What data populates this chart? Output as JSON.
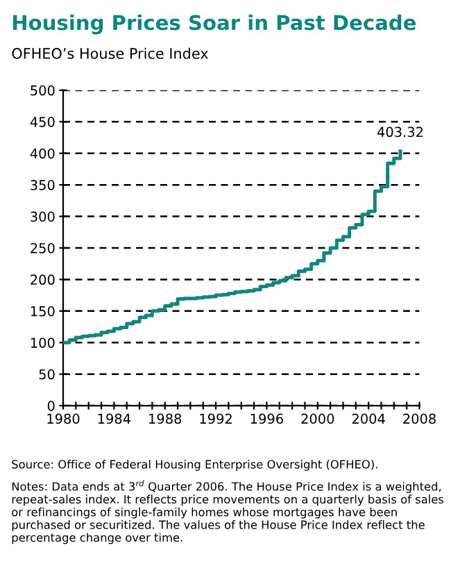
{
  "chart_data": {
    "type": "step",
    "title": "Housing Prices Soar in Past Decade",
    "subtitle": "OFHEO’s House Price Index",
    "x": [
      1980,
      1980.5,
      1981,
      1981.5,
      1982,
      1982.5,
      1983,
      1983.5,
      1984,
      1984.5,
      1985,
      1985.5,
      1986,
      1986.5,
      1987,
      1987.5,
      1988,
      1988.5,
      1989,
      1989.5,
      1990,
      1990.5,
      1991,
      1991.5,
      1992,
      1992.5,
      1993,
      1993.5,
      1994,
      1994.5,
      1995,
      1995.5,
      1996,
      1996.5,
      1997,
      1997.5,
      1998,
      1998.5,
      1999,
      1999.5,
      2000,
      2000.5,
      2001,
      2001.5,
      2002,
      2002.5,
      2003,
      2003.5,
      2004,
      2004.5,
      2005,
      2005.5,
      2006,
      2006.5
    ],
    "series": [
      {
        "color": "#13857f",
        "values": [
          100,
          104,
          108,
          110,
          111,
          112,
          116,
          118,
          122,
          124,
          130,
          133,
          140,
          143,
          150,
          152,
          158,
          161,
          169,
          170,
          170,
          171,
          172,
          173,
          175,
          176,
          178,
          180,
          181,
          182,
          184,
          189,
          191,
          195,
          198,
          203,
          206,
          213,
          216,
          225,
          230,
          242,
          250,
          262,
          268,
          282,
          287,
          303,
          308,
          340,
          347,
          384,
          392,
          403.32
        ]
      }
    ],
    "xlim": [
      1980,
      2008
    ],
    "xticks": [
      1980,
      {
        "value": 1981,
        "label": null
      },
      {
        "value": 1982,
        "label": null
      },
      {
        "value": 1983,
        "label": null
      },
      1984,
      {
        "value": 1985,
        "label": null
      },
      {
        "value": 1986,
        "label": null
      },
      {
        "value": 1987,
        "label": null
      },
      1988,
      {
        "value": 1989,
        "label": null
      },
      {
        "value": 1990,
        "label": null
      },
      {
        "value": 1991,
        "label": null
      },
      1992,
      {
        "value": 1993,
        "label": null
      },
      {
        "value": 1994,
        "label": null
      },
      {
        "value": 1995,
        "label": null
      },
      1996,
      {
        "value": 1997,
        "label": null
      },
      {
        "value": 1998,
        "label": null
      },
      {
        "value": 1999,
        "label": null
      },
      2000,
      {
        "value": 2001,
        "label": null
      },
      {
        "value": 2002,
        "label": null
      },
      {
        "value": 2003,
        "label": null
      },
      2004,
      {
        "value": 2005,
        "label": null
      },
      {
        "value": 2006,
        "label": null
      },
      {
        "value": 2007,
        "label": null
      },
      2008
    ],
    "ylim": [
      0,
      500
    ],
    "yticks": [
      0,
      50,
      100,
      150,
      200,
      250,
      300,
      350,
      400,
      450,
      500
    ],
    "grid": "y",
    "line_style": "solid",
    "annotations": [
      {
        "text": "403.32",
        "x": 2006.5,
        "y": 403.32
      },
      "Source: Office of Federal Housing Enterprise Oversight (OFHEO).",
      "Notes: Data ends at 3$^{rd}$ Quarter 2006. The House Price Index is a weighted, repeat-sales index. It reflects price movements on a quarterly basis of sales or refinancings of single-family homes whose mortgages have been purchased or securitized. The values of the House Price Index reflect the percentage change over time."
    ]
  }
}
